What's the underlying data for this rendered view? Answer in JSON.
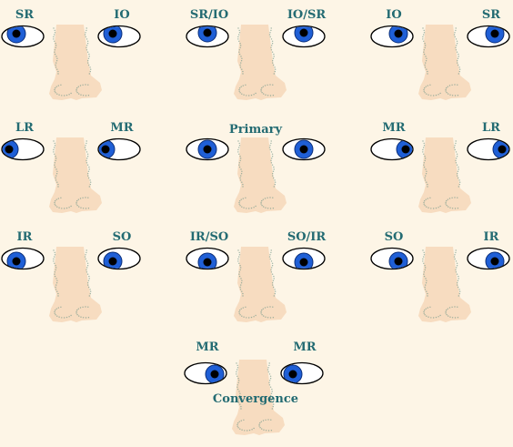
{
  "colors": {
    "background": "#fdf5e6",
    "label": "#236b72",
    "iris": "#1f5fd6",
    "pupil": "#000000",
    "nose_fill": "#f7dcc0",
    "nose_shade": "#7e9e8f"
  },
  "panels": [
    {
      "left_label": "SR",
      "right_label": "IO",
      "gaze": "up-right"
    },
    {
      "left_label": "SR/IO",
      "right_label": "IO/SR",
      "gaze": "up"
    },
    {
      "left_label": "IO",
      "right_label": "SR",
      "gaze": "up-left"
    },
    {
      "left_label": "LR",
      "right_label": "MR",
      "gaze": "right"
    },
    {
      "center_label": "Primary",
      "gaze": "center"
    },
    {
      "left_label": "MR",
      "right_label": "LR",
      "gaze": "left"
    },
    {
      "left_label": "IR",
      "right_label": "SO",
      "gaze": "down-right"
    },
    {
      "left_label": "IR/SO",
      "right_label": "SO/IR",
      "gaze": "down"
    },
    {
      "left_label": "SO",
      "right_label": "IR",
      "gaze": "down-left"
    },
    {
      "left_label": "MR",
      "right_label": "MR",
      "bottom_label": "Convergence",
      "gaze": "convergence"
    }
  ]
}
